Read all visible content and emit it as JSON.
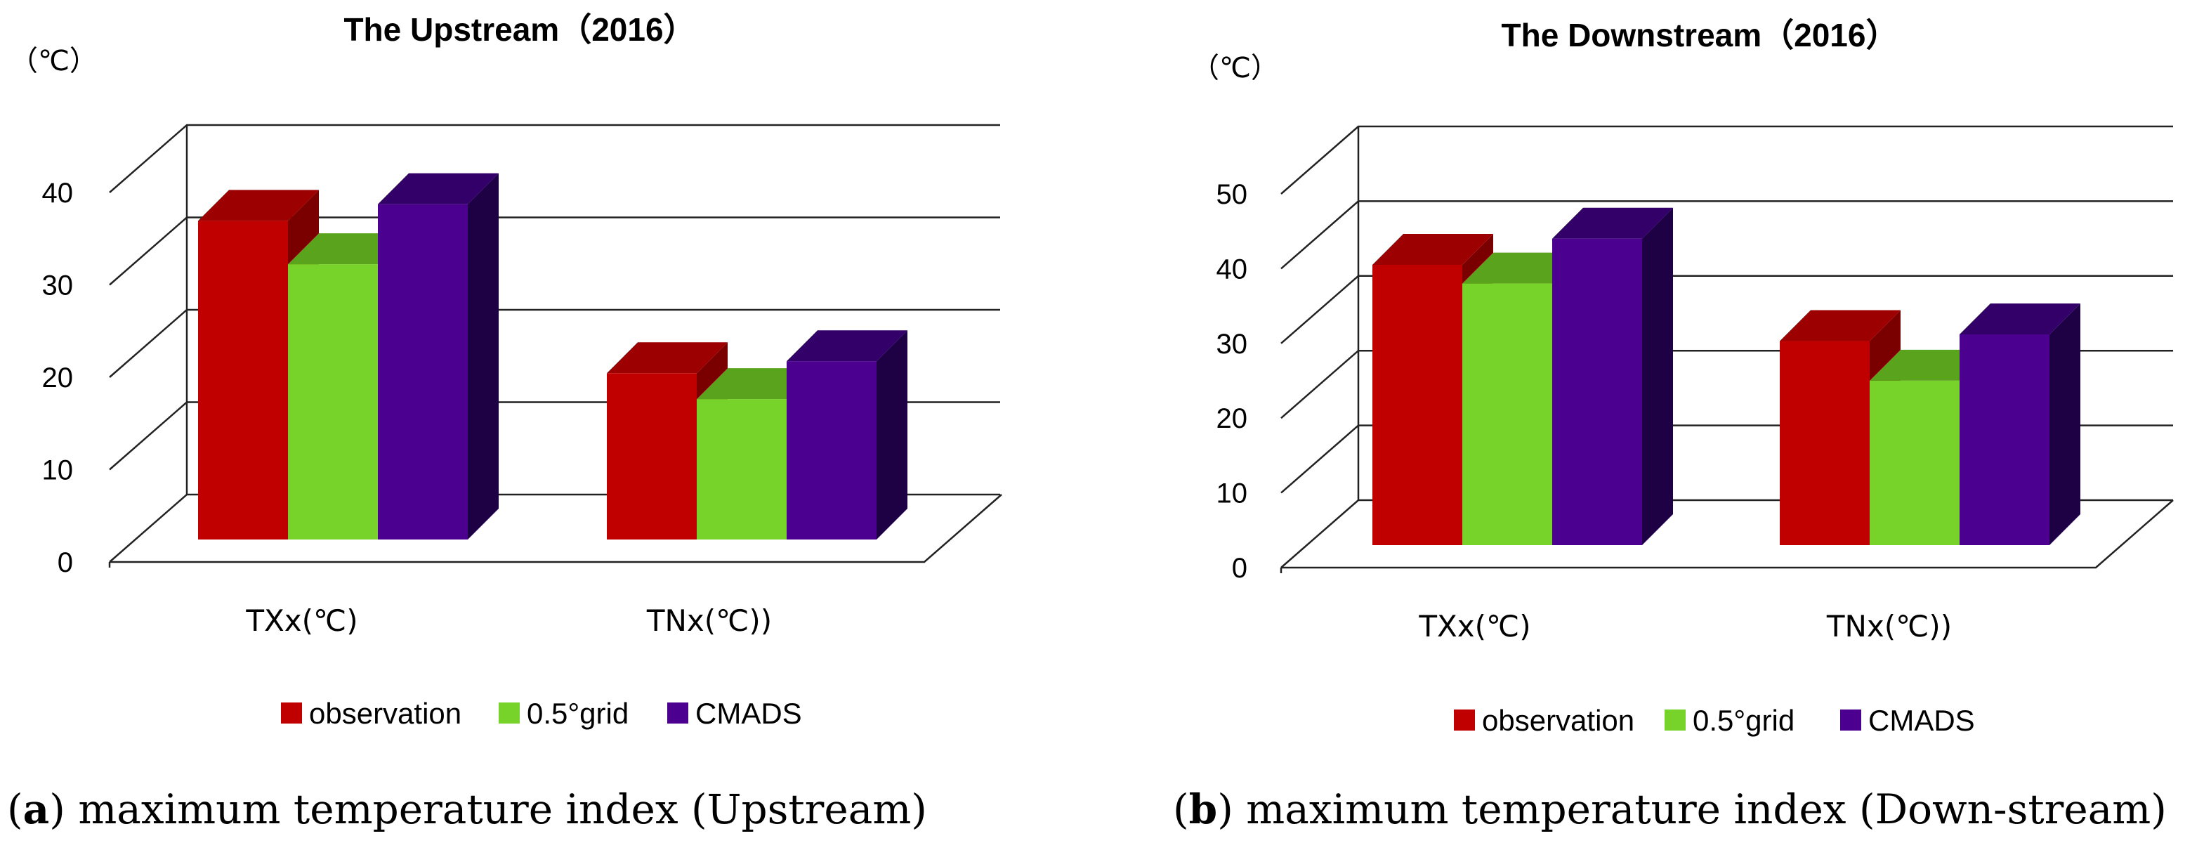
{
  "chart_data": [
    {
      "type": "bar",
      "title": "The Upstream（2016）",
      "unit_label": "（℃）",
      "categories": [
        "TXx(℃)",
        "TNx(℃))"
      ],
      "ylim": [
        0,
        40
      ],
      "yticks": [
        0,
        10,
        20,
        30,
        40
      ],
      "series": [
        {
          "name": "observation",
          "values": [
            34.5,
            18
          ]
        },
        {
          "name": "0.5°grid",
          "values": [
            29.8,
            15.2
          ]
        },
        {
          "name": "CMADS",
          "values": [
            36.3,
            19.3
          ]
        }
      ],
      "legend_position": "bottom",
      "caption_label": "a",
      "caption_text": "maximum temperature index (Upstream)"
    },
    {
      "type": "bar",
      "title": "The Downstream（2016）",
      "unit_label": "（℃）",
      "categories": [
        "TXx(℃)",
        "TNx(℃))"
      ],
      "ylim": [
        0,
        50
      ],
      "yticks": [
        0,
        10,
        20,
        30,
        40,
        50
      ],
      "series": [
        {
          "name": "observation",
          "values": [
            37.5,
            27.3
          ]
        },
        {
          "name": "0.5°grid",
          "values": [
            35,
            22
          ]
        },
        {
          "name": "CMADS",
          "values": [
            41,
            28.2
          ]
        }
      ],
      "legend_position": "bottom",
      "caption_label": "b",
      "caption_text": "maximum temperature index (Down-stream)"
    }
  ],
  "colors": {
    "observation": [
      "#c00000",
      "#9c0000",
      "#7a0000"
    ],
    "grid": [
      "#77d22a",
      "#5aa31c",
      "#3f8a12"
    ],
    "cmads": [
      "#4b0090",
      "#320068",
      "#1e0044"
    ]
  }
}
